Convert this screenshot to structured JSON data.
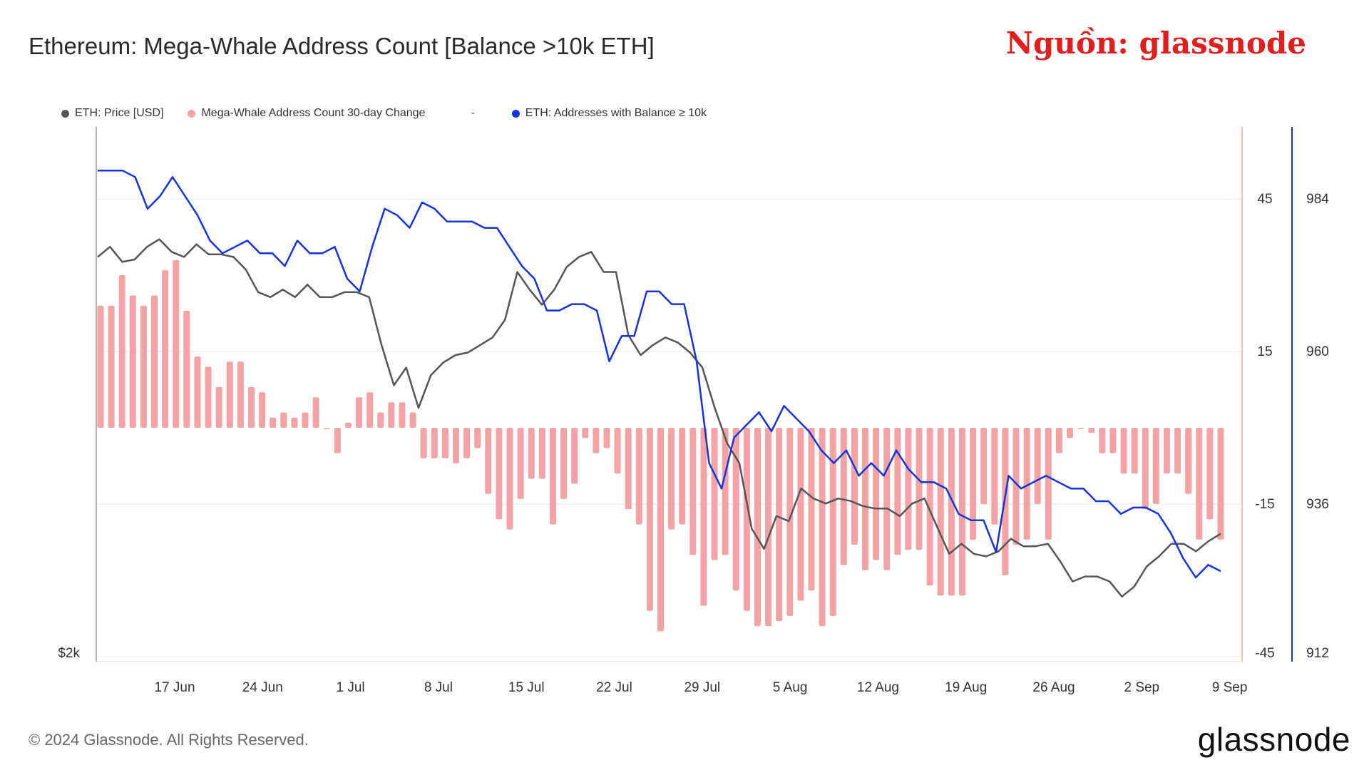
{
  "header": {
    "title": "Ethereum: Mega-Whale Address Count [Balance >10k ETH]",
    "source_label": "Nguồn: glassnode"
  },
  "legend": {
    "items": [
      {
        "label": "ETH: Price [USD]",
        "color": "#555555"
      },
      {
        "label": "Mega-Whale Address Count 30-day Change",
        "color": "#f4a3a5"
      },
      {
        "label": "ETH: Addresses with Balance ≥ 10k",
        "color": "#1433e0"
      }
    ],
    "separator": "-"
  },
  "footer": {
    "copyright": "© 2024 Glassnode. All Rights Reserved.",
    "brand": "glassnode"
  },
  "chart_data": {
    "type": "line",
    "x_tick_labels": [
      "17 Jun",
      "24 Jun",
      "1 Jul",
      "8 Jul",
      "15 Jul",
      "22 Jul",
      "29 Jul",
      "5 Aug",
      "12 Aug",
      "19 Aug",
      "26 Aug",
      "2 Sep",
      "9 Sep"
    ],
    "x_range": [
      "2024-06-11",
      "2024-09-09"
    ],
    "left_axis": {
      "ticks": [
        "$2k"
      ]
    },
    "right_axis_change": {
      "ticks": [
        "45",
        "15",
        "-15",
        "-45"
      ],
      "values": [
        45,
        15,
        -15,
        -45
      ],
      "range": [
        -45,
        45
      ]
    },
    "right_axis_addresses": {
      "ticks": [
        "984",
        "960",
        "936",
        "912"
      ],
      "values": [
        984,
        960,
        936,
        912
      ],
      "range": [
        912,
        984
      ]
    },
    "grid": "horizontal",
    "legend_position": "top-left",
    "series": [
      {
        "name": "Mega-Whale Address Count 30-day Change",
        "type": "bar",
        "color": "#f4a3a5",
        "values": [
          24,
          24,
          30,
          26,
          24,
          26,
          31,
          33,
          23,
          14,
          12,
          8,
          13,
          13,
          8,
          7,
          2,
          3,
          2,
          3,
          6,
          0,
          -5,
          1,
          6,
          7,
          3,
          5,
          5,
          3,
          -6,
          -6,
          -6,
          -7,
          -6,
          -4,
          -13,
          -18,
          -20,
          -14,
          -10,
          -10,
          -19,
          -14,
          -11,
          -2,
          -5,
          -4,
          -9,
          -16,
          -19,
          -36,
          -40,
          -20,
          -19,
          -25,
          -35,
          -26,
          -25,
          -32,
          -36,
          -39,
          -39,
          -38,
          -37,
          -34,
          -32,
          -39,
          -37,
          -27,
          -23,
          -28,
          -26,
          -28,
          -25,
          -24,
          -24,
          -31,
          -33,
          -33,
          -33,
          -22,
          -15,
          -19,
          -29,
          -23,
          -22,
          -15,
          -22,
          -5,
          -2,
          0,
          -1,
          -5,
          -5,
          -9,
          -9,
          -16,
          -15,
          -9,
          -9,
          -13,
          -22,
          -18,
          -22
        ]
      },
      {
        "name": "ETH: Addresses with Balance ≥ 10k",
        "type": "line",
        "color": "#1433e0",
        "values": [
          988,
          988,
          988,
          987,
          982,
          984,
          987,
          984,
          981,
          977,
          975,
          976,
          977,
          975,
          975,
          973,
          977,
          975,
          975,
          976,
          971,
          969,
          976,
          982,
          981,
          979,
          983,
          982,
          980,
          980,
          980,
          979,
          979,
          976,
          973,
          971,
          966,
          966,
          967,
          967,
          966,
          958,
          962,
          962,
          969,
          969,
          967,
          967,
          958,
          942,
          938,
          946,
          948,
          950,
          947,
          951,
          949,
          947,
          944,
          942,
          944,
          940,
          942,
          940,
          944,
          941,
          939,
          939,
          938,
          934,
          933,
          933,
          928,
          940,
          938,
          939,
          940,
          939,
          938,
          938,
          936,
          936,
          934,
          935,
          935,
          934,
          931,
          927,
          924,
          926,
          925
        ]
      },
      {
        "name": "ETH: Price [USD]",
        "type": "line",
        "color": "#555555",
        "values": [
          3580,
          3620,
          3560,
          3570,
          3620,
          3650,
          3600,
          3580,
          3630,
          3590,
          3590,
          3580,
          3530,
          3440,
          3420,
          3450,
          3420,
          3470,
          3420,
          3420,
          3440,
          3440,
          3420,
          3230,
          3070,
          3140,
          2980,
          3110,
          3160,
          3190,
          3200,
          3230,
          3260,
          3330,
          3520,
          3450,
          3390,
          3450,
          3540,
          3580,
          3600,
          3520,
          3520,
          3270,
          3190,
          3230,
          3260,
          3240,
          3200,
          3140,
          2980,
          2840,
          2760,
          2500,
          2420,
          2550,
          2530,
          2660,
          2620,
          2600,
          2620,
          2610,
          2590,
          2580,
          2580,
          2550,
          2600,
          2620,
          2510,
          2400,
          2440,
          2400,
          2390,
          2410,
          2460,
          2430,
          2430,
          2440,
          2370,
          2290,
          2310,
          2310,
          2290,
          2230,
          2270,
          2350,
          2390,
          2440,
          2440,
          2410,
          2450,
          2480
        ]
      }
    ]
  }
}
